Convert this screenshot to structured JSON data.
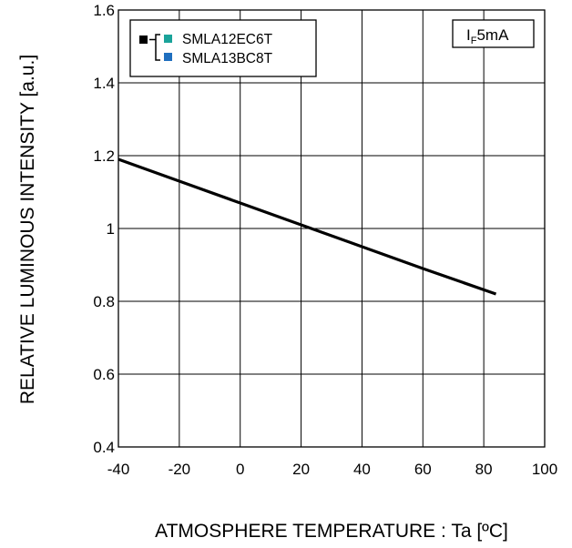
{
  "chart_data": {
    "type": "line",
    "xlabel": "ATMOSPHERE TEMPERATURE : Ta [ºC]",
    "ylabel": "RELATIVE LUMINOUS INTENSITY [a.u.]",
    "xlim": [
      -40,
      100
    ],
    "ylim": [
      0.4,
      1.6
    ],
    "xticks": [
      -40,
      -20,
      0,
      20,
      40,
      60,
      80,
      100
    ],
    "yticks": [
      0.4,
      0.6,
      0.8,
      1,
      1.2,
      1.4,
      1.6
    ],
    "xtick_labels": [
      "-40",
      "-20",
      "0",
      "20",
      "40",
      "60",
      "80",
      "100"
    ],
    "ytick_labels": [
      "0.4",
      "0.6",
      "0.8",
      "1",
      "1.2",
      "1.4",
      "1.6"
    ],
    "grid": true,
    "legend_position": "top-left",
    "series": [
      {
        "x": [
          -40,
          -20,
          0,
          20,
          40,
          60,
          84
        ],
        "y": [
          1.19,
          1.13,
          1.07,
          1.01,
          0.95,
          0.89,
          0.82
        ],
        "color": "#000000"
      }
    ],
    "legend": {
      "items": [
        {
          "label": "SMLA12EC6T",
          "color": "#1aa39a"
        },
        {
          "label": "SMLA13BC8T",
          "color": "#1f6fbf"
        }
      ],
      "bracket_color": "#000000"
    },
    "condition_label": {
      "main": "I",
      "sub": "F",
      "rest": "5mA"
    }
  }
}
